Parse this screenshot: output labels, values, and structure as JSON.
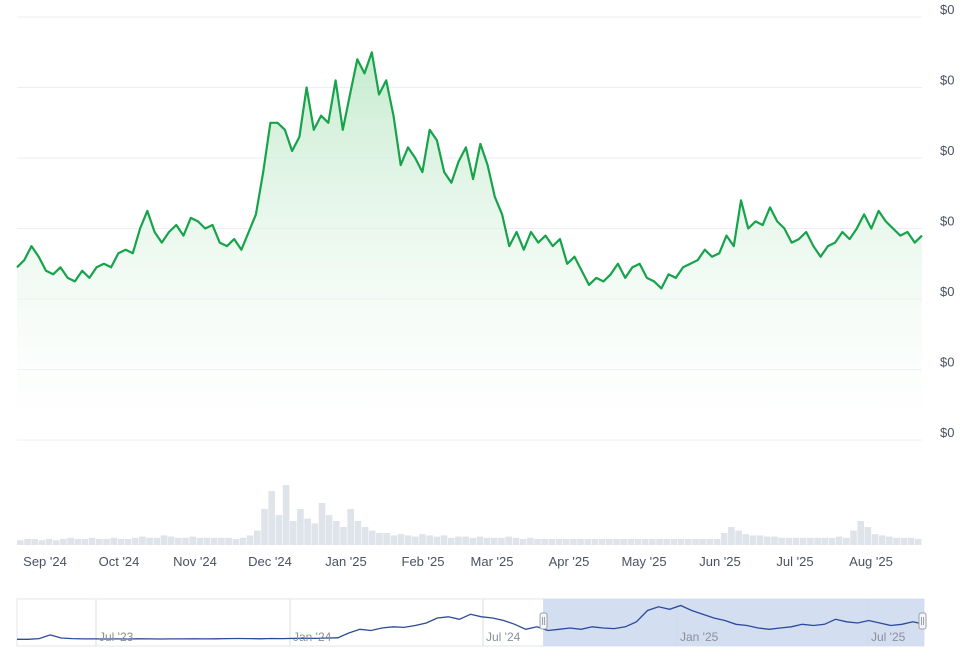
{
  "chart_data": {
    "type": "area",
    "y_tick_labels": [
      "$0",
      "$0",
      "$0",
      "$0",
      "$0",
      "$0",
      "$0"
    ],
    "x_tick_labels": [
      "Sep '24",
      "Oct '24",
      "Nov '24",
      "Dec '24",
      "Jan '25",
      "Feb '25",
      "Mar '25",
      "Apr '25",
      "May '25",
      "Jun '25",
      "Jul '25",
      "Aug '25"
    ],
    "ylim": [
      0,
      6
    ],
    "grid": true,
    "series": [
      {
        "values": [
          2.45,
          2.55,
          2.75,
          2.6,
          2.4,
          2.35,
          2.45,
          2.3,
          2.25,
          2.4,
          2.3,
          2.45,
          2.5,
          2.45,
          2.65,
          2.7,
          2.65,
          3.0,
          3.25,
          2.95,
          2.8,
          2.95,
          3.05,
          2.9,
          3.15,
          3.1,
          3.0,
          3.05,
          2.8,
          2.75,
          2.85,
          2.7,
          2.95,
          3.2,
          3.8,
          4.5,
          4.5,
          4.4,
          4.1,
          4.3,
          5.0,
          4.4,
          4.6,
          4.5,
          5.1,
          4.4,
          4.9,
          5.4,
          5.2,
          5.5,
          4.9,
          5.1,
          4.6,
          3.9,
          4.15,
          4.0,
          3.8,
          4.4,
          4.25,
          3.8,
          3.65,
          3.95,
          4.15,
          3.7,
          4.2,
          3.9,
          3.45,
          3.2,
          2.75,
          2.95,
          2.7,
          2.95,
          2.8,
          2.9,
          2.75,
          2.85,
          2.5,
          2.6,
          2.4,
          2.2,
          2.3,
          2.25,
          2.35,
          2.5,
          2.3,
          2.45,
          2.5,
          2.3,
          2.25,
          2.15,
          2.35,
          2.3,
          2.45,
          2.5,
          2.55,
          2.7,
          2.6,
          2.65,
          2.9,
          2.75,
          3.4,
          3.0,
          3.1,
          3.05,
          3.3,
          3.1,
          3.0,
          2.8,
          2.85,
          2.95,
          2.75,
          2.6,
          2.75,
          2.8,
          2.95,
          2.85,
          3.0,
          3.2,
          3.0,
          3.25,
          3.1,
          3.0,
          2.9,
          2.95,
          2.8,
          2.9
        ]
      }
    ],
    "volume": [
      0.04,
      0.05,
      0.05,
      0.04,
      0.05,
      0.04,
      0.05,
      0.06,
      0.05,
      0.05,
      0.06,
      0.05,
      0.05,
      0.06,
      0.05,
      0.05,
      0.06,
      0.07,
      0.06,
      0.06,
      0.08,
      0.07,
      0.06,
      0.06,
      0.07,
      0.06,
      0.06,
      0.06,
      0.06,
      0.06,
      0.05,
      0.06,
      0.08,
      0.12,
      0.3,
      0.45,
      0.25,
      0.5,
      0.2,
      0.3,
      0.22,
      0.18,
      0.35,
      0.25,
      0.2,
      0.15,
      0.3,
      0.2,
      0.15,
      0.12,
      0.1,
      0.1,
      0.08,
      0.09,
      0.08,
      0.07,
      0.09,
      0.08,
      0.07,
      0.08,
      0.06,
      0.07,
      0.07,
      0.06,
      0.07,
      0.06,
      0.06,
      0.06,
      0.07,
      0.06,
      0.05,
      0.06,
      0.05,
      0.05,
      0.05,
      0.05,
      0.05,
      0.05,
      0.05,
      0.05,
      0.05,
      0.05,
      0.05,
      0.05,
      0.05,
      0.05,
      0.05,
      0.05,
      0.05,
      0.05,
      0.05,
      0.05,
      0.05,
      0.05,
      0.05,
      0.05,
      0.05,
      0.05,
      0.1,
      0.15,
      0.12,
      0.09,
      0.08,
      0.08,
      0.07,
      0.07,
      0.06,
      0.06,
      0.06,
      0.06,
      0.06,
      0.06,
      0.06,
      0.06,
      0.07,
      0.06,
      0.12,
      0.2,
      0.15,
      0.09,
      0.08,
      0.07,
      0.06,
      0.06,
      0.06,
      0.05
    ],
    "colors": {
      "line": "#16a34a",
      "area_top": "#bfe9c9",
      "grid": "#eceef2",
      "volume": "#dfe3ea",
      "navigator_line": "#2c4a9a",
      "navigator_selection": "#cdd8ee"
    }
  },
  "navigator": {
    "tick_labels": [
      "Jul '23",
      "Jan '24",
      "Jul '24",
      "Jan '25",
      "Jul '25"
    ],
    "values": [
      0.3,
      0.3,
      0.35,
      0.65,
      0.4,
      0.35,
      0.33,
      0.33,
      0.32,
      0.33,
      0.32,
      0.34,
      0.33,
      0.32,
      0.33,
      0.33,
      0.34,
      0.33,
      0.34,
      0.35,
      0.36,
      0.35,
      0.34,
      0.36,
      0.35,
      0.37,
      0.38,
      0.37,
      0.4,
      0.42,
      0.8,
      1.1,
      1.0,
      1.2,
      1.3,
      1.25,
      1.4,
      1.6,
      2.0,
      2.1,
      1.9,
      2.3,
      2.1,
      2.0,
      1.8,
      1.5,
      1.1,
      1.3,
      1.0,
      1.1,
      1.2,
      1.1,
      1.3,
      1.2,
      1.15,
      1.3,
      1.7,
      2.6,
      2.9,
      2.7,
      3.0,
      2.6,
      2.3,
      2.0,
      1.8,
      1.5,
      1.4,
      1.2,
      1.1,
      1.2,
      1.3,
      1.5,
      1.4,
      1.5,
      1.9,
      1.7,
      1.6,
      1.8,
      1.6,
      1.4,
      1.5,
      1.7,
      1.5
    ],
    "selection": [
      0.58,
      1.0
    ]
  }
}
